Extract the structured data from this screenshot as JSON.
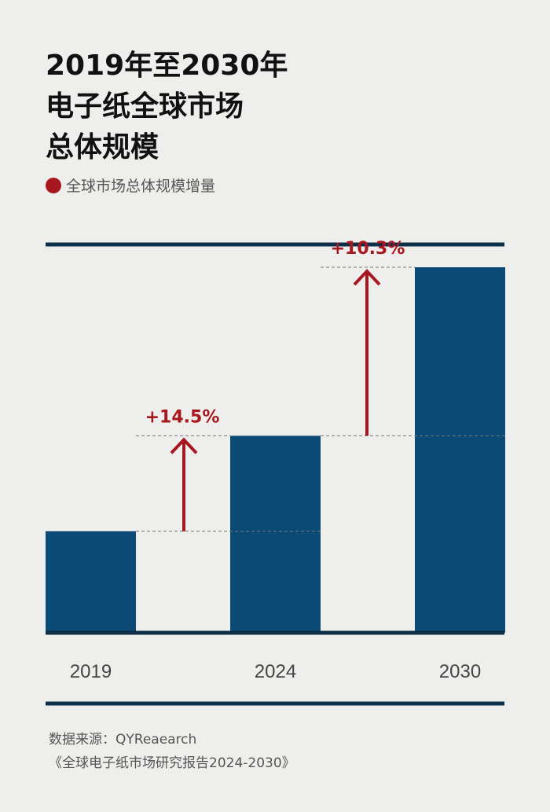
{
  "title_lines": [
    "2019年至2030年",
    "电子纸全球市场",
    "总体规模"
  ],
  "legend_label": "全球市场总体规模增量",
  "source": {
    "line1": "数据来源：QYReaearch",
    "line2": "《全球电子纸市场研究报告2024-2030》"
  },
  "colors": {
    "bar": "#0b4a75",
    "accent": "#a8161e",
    "rule": "#0f2f48"
  },
  "chart_data": {
    "type": "bar",
    "categories": [
      "2019",
      "2024",
      "2030"
    ],
    "values": [
      100,
      194,
      360
    ],
    "annotations": [
      {
        "from": "2019",
        "to": "2024",
        "label": "+14.5%"
      },
      {
        "from": "2024",
        "to": "2030",
        "label": "+10.3%"
      }
    ],
    "grid": false,
    "legend_position": "top-left"
  }
}
